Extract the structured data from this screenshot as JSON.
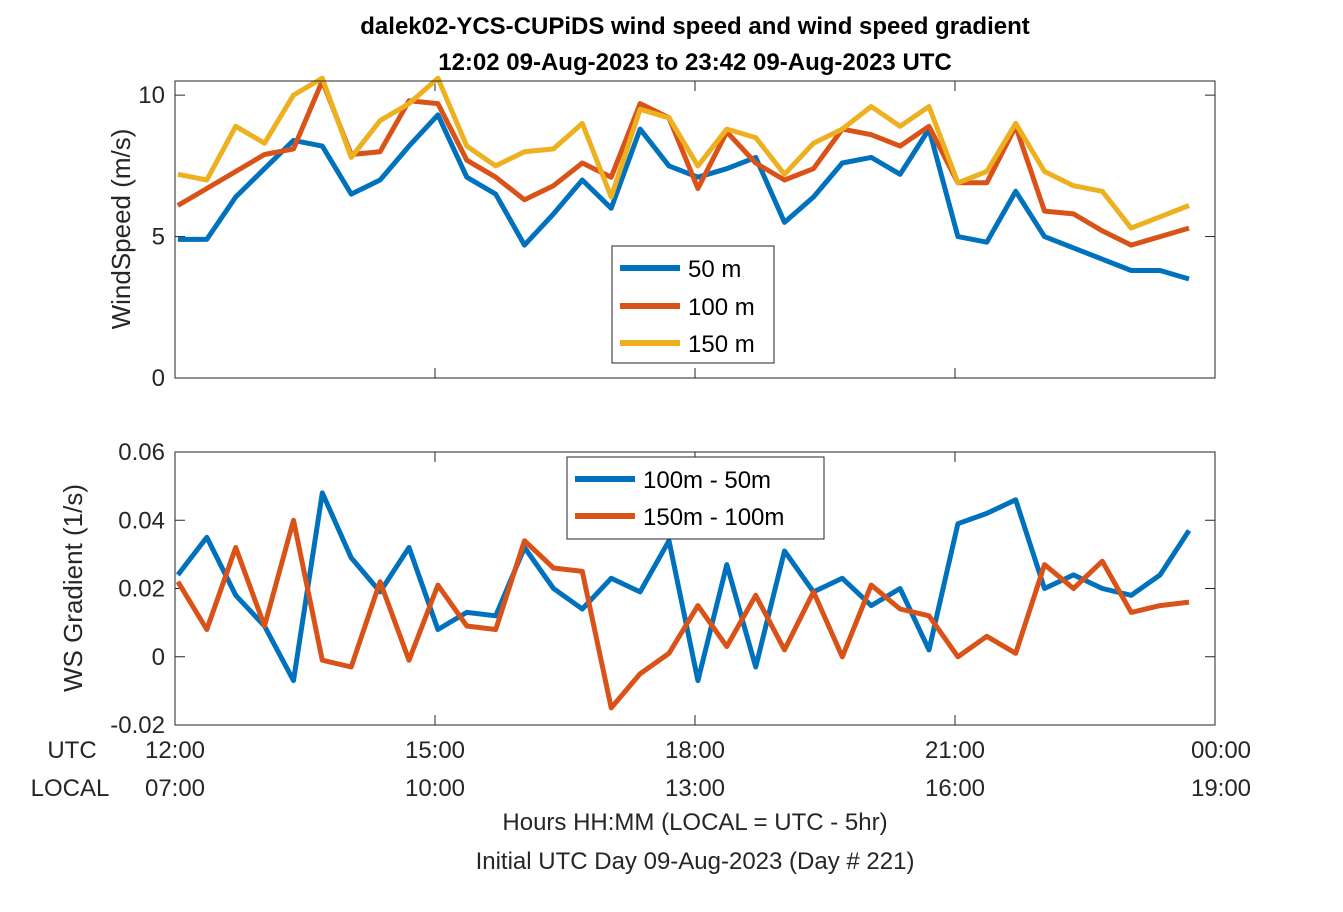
{
  "chart_data": [
    {
      "type": "line",
      "title": "dalek02-YCS-CUPiDS  wind speed and wind speed gradient",
      "subtitle": "12:02 09-Aug-2023 to 23:42 09-Aug-2023  UTC",
      "ylabel": "WindSpeed (m/s)",
      "ylim": [
        0,
        10.5
      ],
      "yticks": [
        0,
        5,
        10
      ],
      "ytick_labels": [
        "0",
        "5",
        "10"
      ],
      "xlim": [
        0,
        12
      ],
      "x": [
        0.033,
        0.367,
        0.7,
        1.033,
        1.367,
        1.7,
        2.033,
        2.367,
        2.7,
        3.033,
        3.367,
        3.7,
        4.033,
        4.367,
        4.7,
        5.033,
        5.367,
        5.7,
        6.033,
        6.367,
        6.7,
        7.033,
        7.367,
        7.7,
        8.033,
        8.367,
        8.7,
        9.033,
        9.367,
        9.7,
        10.033,
        10.367,
        10.7,
        11.033,
        11.367,
        11.7
      ],
      "series": [
        {
          "name": "50 m",
          "color": "#0072bd",
          "values": [
            4.9,
            4.9,
            6.4,
            7.4,
            8.4,
            8.2,
            6.5,
            7.0,
            8.2,
            9.3,
            7.1,
            6.5,
            4.7,
            5.8,
            7.0,
            6.0,
            8.8,
            7.5,
            7.1,
            7.4,
            7.8,
            5.5,
            6.4,
            7.6,
            7.8,
            7.2,
            8.8,
            5.0,
            4.8,
            6.6,
            5.0,
            4.6,
            4.2,
            3.8,
            3.8,
            3.5
          ]
        },
        {
          "name": "100 m",
          "color": "#d95319",
          "values": [
            6.1,
            6.7,
            7.3,
            7.9,
            8.1,
            10.5,
            7.9,
            8.0,
            9.8,
            9.7,
            7.7,
            7.1,
            6.3,
            6.8,
            7.6,
            7.1,
            9.7,
            9.2,
            6.7,
            8.7,
            7.6,
            7.0,
            7.4,
            8.8,
            8.6,
            8.2,
            8.9,
            6.9,
            6.9,
            8.9,
            5.9,
            5.8,
            5.2,
            4.7,
            5.0,
            5.3
          ]
        },
        {
          "name": "150 m",
          "color": "#edb120",
          "values": [
            7.2,
            7.0,
            8.9,
            8.3,
            10.0,
            10.6,
            7.8,
            9.1,
            9.7,
            10.6,
            8.2,
            7.5,
            8.0,
            8.1,
            9.0,
            6.4,
            9.5,
            9.2,
            7.5,
            8.8,
            8.5,
            7.2,
            8.3,
            8.8,
            9.6,
            8.9,
            9.6,
            6.9,
            7.3,
            9.0,
            7.3,
            6.8,
            6.6,
            5.3,
            5.7,
            6.1
          ]
        }
      ],
      "legend": "center"
    },
    {
      "type": "line",
      "ylabel": "WS Gradient (1/s)",
      "ylim": [
        -0.02,
        0.06
      ],
      "yticks": [
        -0.02,
        0,
        0.02,
        0.04,
        0.06
      ],
      "ytick_labels": [
        "-0.02",
        "0",
        "0.02",
        "0.04",
        "0.06"
      ],
      "xlim": [
        0,
        12
      ],
      "x": [
        0.033,
        0.367,
        0.7,
        1.033,
        1.367,
        1.7,
        2.033,
        2.367,
        2.7,
        3.033,
        3.367,
        3.7,
        4.033,
        4.367,
        4.7,
        5.033,
        5.367,
        5.7,
        6.033,
        6.367,
        6.7,
        7.033,
        7.367,
        7.7,
        8.033,
        8.367,
        8.7,
        9.033,
        9.367,
        9.7,
        10.033,
        10.367,
        10.7,
        11.033,
        11.367,
        11.7
      ],
      "series": [
        {
          "name": "100m - 50m",
          "color": "#0072bd",
          "values": [
            0.024,
            0.035,
            0.018,
            0.009,
            -0.007,
            0.048,
            0.029,
            0.019,
            0.032,
            0.008,
            0.013,
            0.012,
            0.032,
            0.02,
            0.014,
            0.023,
            0.019,
            0.034,
            -0.007,
            0.027,
            -0.003,
            0.031,
            0.019,
            0.023,
            0.015,
            0.02,
            0.002,
            0.039,
            0.042,
            0.046,
            0.02,
            0.024,
            0.02,
            0.018,
            0.024,
            0.037
          ]
        },
        {
          "name": "150m - 100m",
          "color": "#d95319",
          "values": [
            0.022,
            0.008,
            0.032,
            0.009,
            0.04,
            -0.001,
            -0.003,
            0.022,
            -0.001,
            0.021,
            0.009,
            0.008,
            0.034,
            0.026,
            0.025,
            -0.015,
            -0.005,
            0.001,
            0.015,
            0.003,
            0.018,
            0.002,
            0.019,
            0.0,
            0.021,
            0.014,
            0.012,
            0.0,
            0.006,
            0.001,
            0.027,
            0.02,
            0.028,
            0.013,
            0.015,
            0.016
          ]
        }
      ],
      "legend": "top-center"
    }
  ],
  "x_axis": {
    "utc_row_label": "UTC",
    "local_row_label": "LOCAL",
    "ticks_hours": [
      0,
      3,
      6,
      9,
      12
    ],
    "utc_labels": [
      "12:00",
      "15:00",
      "18:00",
      "21:00",
      "00:00"
    ],
    "local_labels": [
      "07:00",
      "10:00",
      "13:00",
      "16:00",
      "19:00"
    ],
    "xlabel": "Hours HH:MM  (LOCAL = UTC - 5hr)",
    "footnote": "Initial UTC Day 09-Aug-2023 (Day # 221)"
  }
}
